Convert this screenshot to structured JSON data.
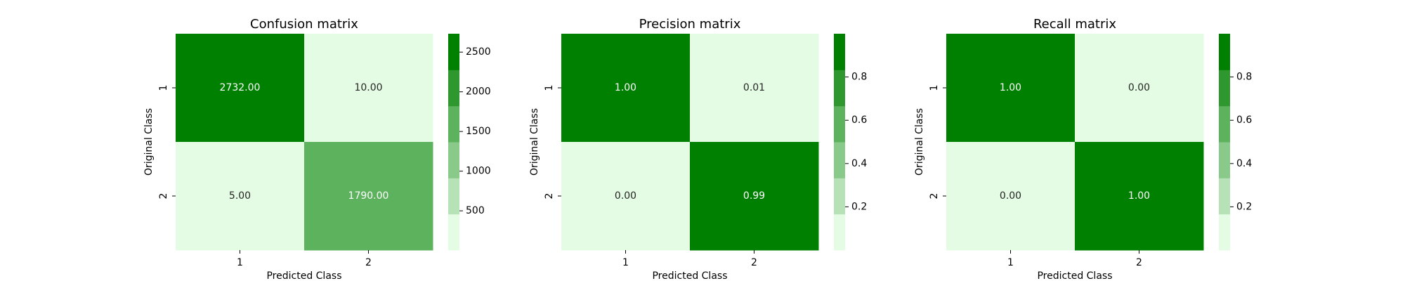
{
  "chart_data": [
    {
      "type": "heatmap",
      "title": "Confusion matrix",
      "xlabel": "Predicted Class",
      "ylabel": "Original Class",
      "x_categories": [
        "1",
        "2"
      ],
      "y_categories": [
        "1",
        "2"
      ],
      "values": [
        [
          2732.0,
          10.0
        ],
        [
          5.0,
          1790.0
        ]
      ],
      "cell_labels": [
        [
          "2732.00",
          "10.00"
        ],
        [
          "5.00",
          "1790.00"
        ]
      ],
      "colorbar": {
        "vmin": 5,
        "vmax": 2732,
        "ticks": [
          500,
          1000,
          1500,
          2000,
          2500
        ],
        "tick_labels": [
          "500",
          "1000",
          "1500",
          "2000",
          "2500"
        ]
      }
    },
    {
      "type": "heatmap",
      "title": "Precision matrix",
      "xlabel": "Predicted Class",
      "ylabel": "Original Class",
      "x_categories": [
        "1",
        "2"
      ],
      "y_categories": [
        "1",
        "2"
      ],
      "values": [
        [
          1.0,
          0.01
        ],
        [
          0.0,
          0.99
        ]
      ],
      "cell_labels": [
        [
          "1.00",
          "0.01"
        ],
        [
          "0.00",
          "0.99"
        ]
      ],
      "colorbar": {
        "vmin": 0.0,
        "vmax": 1.0,
        "ticks": [
          0.2,
          0.4,
          0.6,
          0.8
        ],
        "tick_labels": [
          "0.2",
          "0.4",
          "0.6",
          "0.8"
        ]
      }
    },
    {
      "type": "heatmap",
      "title": "Recall matrix",
      "xlabel": "Predicted Class",
      "ylabel": "Original Class",
      "x_categories": [
        "1",
        "2"
      ],
      "y_categories": [
        "1",
        "2"
      ],
      "values": [
        [
          1.0,
          0.0
        ],
        [
          0.0,
          1.0
        ]
      ],
      "cell_labels": [
        [
          "1.00",
          "0.00"
        ],
        [
          "0.00",
          "1.00"
        ]
      ],
      "colorbar": {
        "vmin": 0.0,
        "vmax": 1.0,
        "ticks": [
          0.2,
          0.4,
          0.6,
          0.8
        ],
        "tick_labels": [
          "0.2",
          "0.4",
          "0.6",
          "0.8"
        ]
      }
    }
  ],
  "colors": {
    "palette": [
      "#e3fce3",
      "#b7e2b7",
      "#89c989",
      "#5db25d",
      "#2e972e",
      "#008000"
    ],
    "text_dark": "#262626",
    "text_light": "#ffffff"
  }
}
